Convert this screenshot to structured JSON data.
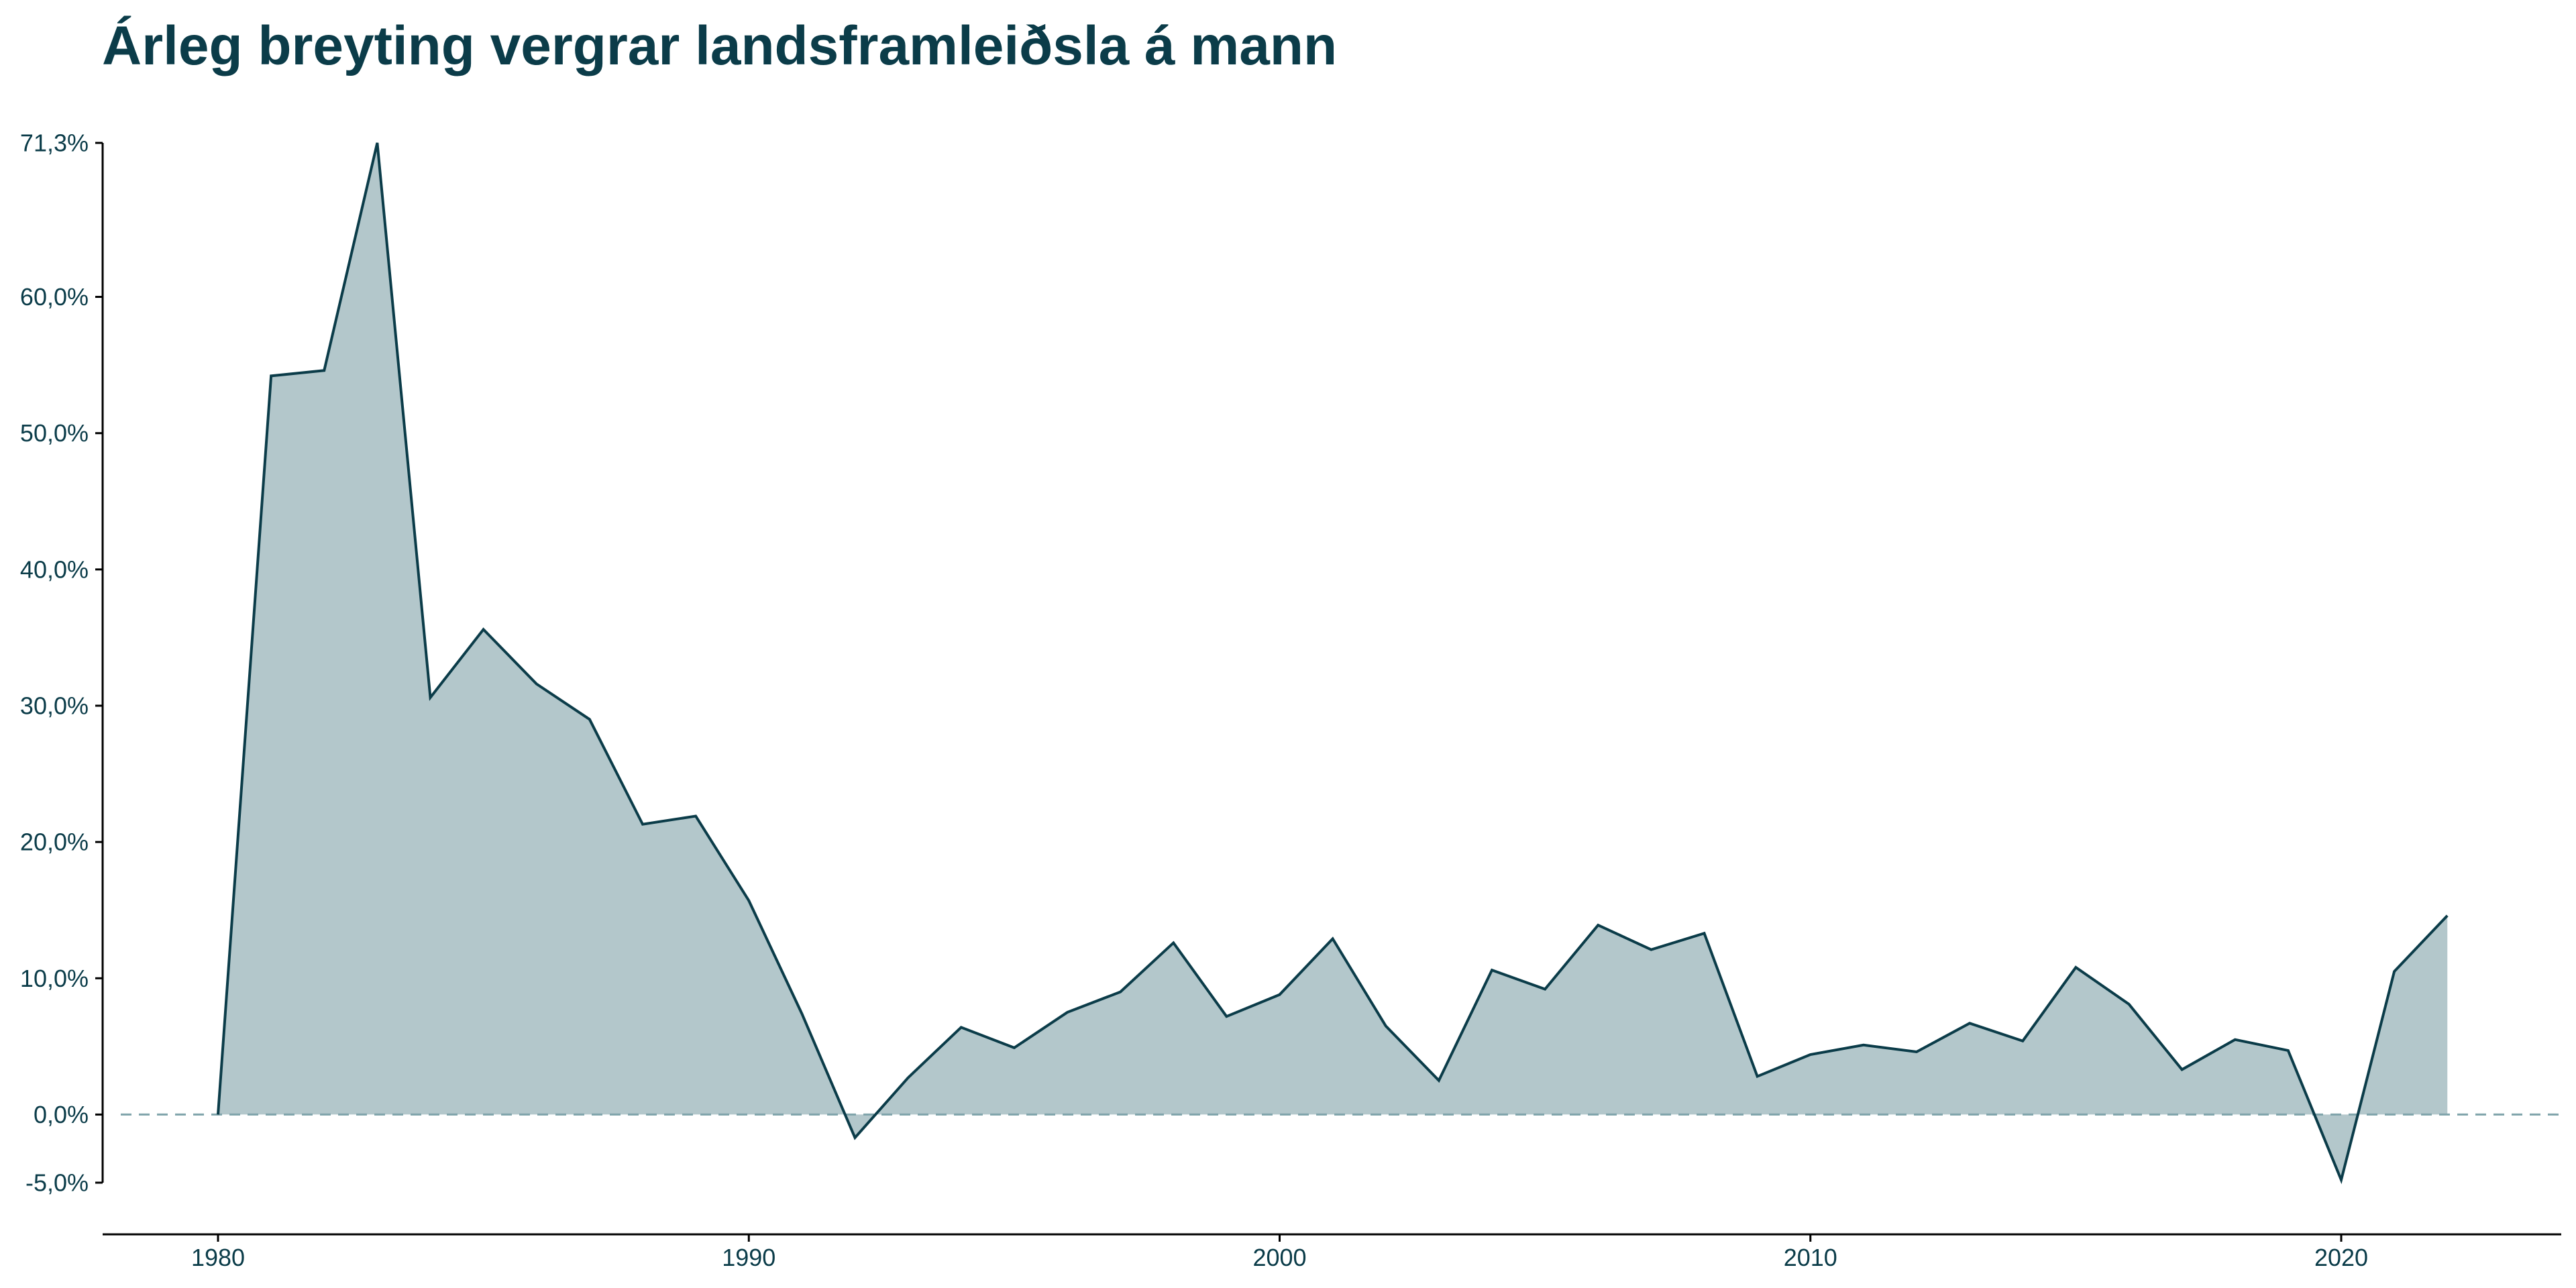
{
  "title": "Árleg breyting vergrar landsframleiðsla á mann",
  "colors": {
    "line": "#0b3c49",
    "area": "#b3c7cb",
    "zero_line": "#7fa3aa",
    "text": "#0b3c49",
    "axis": "#000000"
  },
  "chart_data": {
    "type": "area",
    "title": "Árleg breyting vergrar landsframleiðsla á mann",
    "xlabel": "",
    "ylabel": "",
    "xlim": [
      1978,
      2024
    ],
    "ylim": [
      -5,
      71.3
    ],
    "y_ticks": [
      -5,
      0,
      10,
      20,
      30,
      40,
      50,
      60,
      71.3
    ],
    "y_tick_labels": [
      "-5,0%",
      "0,0%",
      "10,0%",
      "20,0%",
      "30,0%",
      "40,0%",
      "50,0%",
      "60,0%",
      "71,3%"
    ],
    "x_ticks": [
      1980,
      1990,
      2000,
      2010,
      2020
    ],
    "x_tick_labels": [
      "1980",
      "1990",
      "2000",
      "2010",
      "2020"
    ],
    "reference_line": {
      "y": 0,
      "style": "dashed"
    },
    "grid": false,
    "legend": "none",
    "x": [
      1980,
      1981,
      1982,
      1983,
      1984,
      1985,
      1986,
      1987,
      1988,
      1989,
      1990,
      1991,
      1992,
      1993,
      1994,
      1995,
      1996,
      1997,
      1998,
      1999,
      2000,
      2001,
      2002,
      2003,
      2004,
      2005,
      2006,
      2007,
      2008,
      2009,
      2010,
      2011,
      2012,
      2013,
      2014,
      2015,
      2016,
      2017,
      2018,
      2019,
      2020,
      2021,
      2022
    ],
    "values": [
      0.0,
      54.2,
      54.6,
      71.3,
      30.6,
      35.6,
      31.6,
      29.0,
      21.3,
      21.9,
      15.7,
      7.4,
      -1.7,
      2.7,
      6.4,
      4.9,
      7.5,
      9.0,
      12.6,
      7.2,
      8.8,
      12.9,
      6.5,
      2.5,
      10.6,
      9.2,
      13.9,
      12.1,
      13.3,
      2.8,
      4.4,
      5.1,
      4.6,
      6.7,
      5.4,
      10.8,
      8.1,
      3.3,
      5.5,
      4.7,
      -4.8,
      10.5,
      14.6
    ]
  }
}
